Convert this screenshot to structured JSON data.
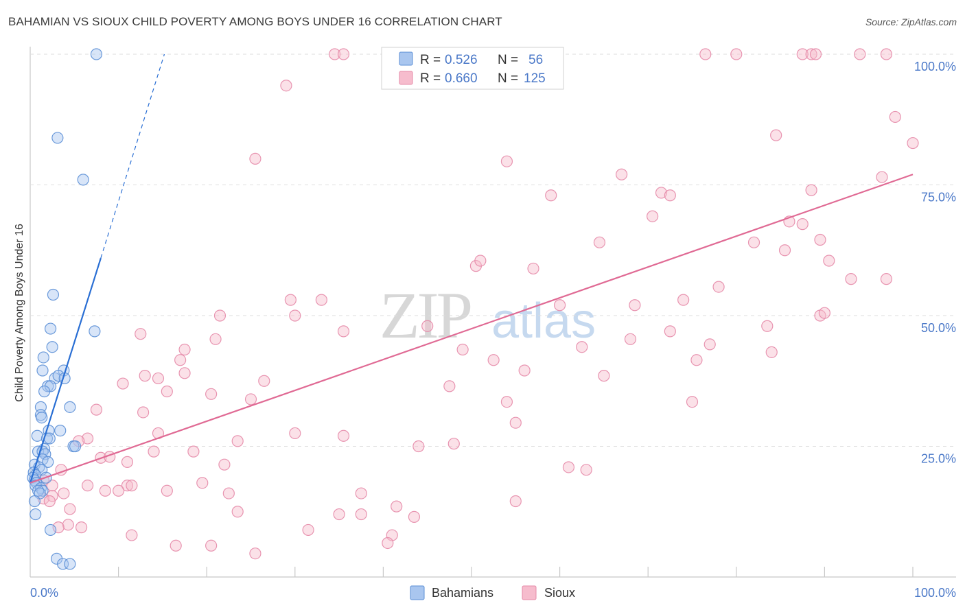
{
  "title": "BAHAMIAN VS SIOUX CHILD POVERTY AMONG BOYS UNDER 16 CORRELATION CHART",
  "source": "Source: ZipAtlas.com",
  "watermark": {
    "zip": "ZIP",
    "atlas": "atlas"
  },
  "colors": {
    "blue": "#5b8fd6",
    "blue_fill": "#a9c6ef",
    "blue_line": "#2a6fd4",
    "pink": "#e58aa8",
    "pink_fill": "#f6bccd",
    "pink_line": "#e06a94",
    "tick_label": "#4a78c8"
  },
  "legend": {
    "rows": [
      {
        "r_label": "R =",
        "r_value": "0.526",
        "n_label": "N =",
        "n_value": "56"
      },
      {
        "r_label": "R =",
        "r_value": "0.660",
        "n_label": "N =",
        "n_value": "125"
      }
    ]
  },
  "bottom_legend": [
    "Bahamians",
    "Sioux"
  ],
  "chart_data": {
    "type": "scatter",
    "title": "BAHAMIAN VS SIOUX CHILD POVERTY AMONG BOYS UNDER 16 CORRELATION CHART",
    "xlabel": "",
    "ylabel": "Child Poverty Among Boys Under 16",
    "xlim": [
      0,
      100
    ],
    "ylim": [
      0,
      100
    ],
    "x_tick_labels": [
      "0.0%",
      "100.0%"
    ],
    "y_tick_labels": [
      "25.0%",
      "50.0%",
      "75.0%",
      "100.0%"
    ],
    "y_ticks": [
      25,
      50,
      75,
      100
    ],
    "series": [
      {
        "name": "Bahamians",
        "r": 0.526,
        "n": 56,
        "trend": {
          "x0": 0.0,
          "y0": 18.0,
          "x1": 8.0,
          "y1": 61.0,
          "dash_x1": 15.2,
          "dash_y1": 100.0
        },
        "points": [
          [
            7.5,
            100
          ],
          [
            3.1,
            84
          ],
          [
            6.0,
            76
          ],
          [
            2.6,
            54
          ],
          [
            7.3,
            47
          ],
          [
            2.3,
            47.5
          ],
          [
            1.5,
            42
          ],
          [
            2.5,
            44
          ],
          [
            1.4,
            39.5
          ],
          [
            3.8,
            39.5
          ],
          [
            2.8,
            38
          ],
          [
            3.2,
            38.5
          ],
          [
            3.9,
            38
          ],
          [
            2.0,
            36.5
          ],
          [
            2.3,
            36.5
          ],
          [
            1.6,
            35.5
          ],
          [
            4.5,
            32.5
          ],
          [
            1.2,
            32.5
          ],
          [
            1.2,
            31
          ],
          [
            1.3,
            30.5
          ],
          [
            3.4,
            28
          ],
          [
            2.1,
            28
          ],
          [
            0.8,
            27
          ],
          [
            1.9,
            26.5
          ],
          [
            2.2,
            26.5
          ],
          [
            4.9,
            25
          ],
          [
            5.1,
            25
          ],
          [
            1.6,
            24.5
          ],
          [
            0.9,
            24
          ],
          [
            1.4,
            24
          ],
          [
            1.7,
            23.5
          ],
          [
            1.4,
            22.5
          ],
          [
            2.0,
            22
          ],
          [
            0.5,
            21.5
          ],
          [
            1.0,
            21
          ],
          [
            1.3,
            20.5
          ],
          [
            0.4,
            20
          ],
          [
            0.6,
            19.5
          ],
          [
            0.3,
            19
          ],
          [
            1.8,
            19
          ],
          [
            0.5,
            18.5
          ],
          [
            0.7,
            18
          ],
          [
            0.6,
            17.5
          ],
          [
            1.2,
            17
          ],
          [
            1.4,
            16.5
          ],
          [
            0.9,
            16.5
          ],
          [
            1.1,
            16
          ],
          [
            0.5,
            14.5
          ],
          [
            0.6,
            12
          ],
          [
            2.3,
            9
          ],
          [
            3.0,
            3.5
          ],
          [
            3.7,
            2.5
          ],
          [
            4.5,
            2.5
          ]
        ],
        "note": "approximate positions read from plot"
      },
      {
        "name": "Sioux",
        "r": 0.66,
        "n": 125,
        "trend": {
          "x0": 0.0,
          "y0": 18.0,
          "x1": 100.0,
          "y1": 77.0
        },
        "points": [
          [
            34.5,
            100
          ],
          [
            35.5,
            100
          ],
          [
            47.5,
            100
          ],
          [
            48.5,
            100
          ],
          [
            76.5,
            100
          ],
          [
            80.0,
            100
          ],
          [
            87.5,
            100
          ],
          [
            88.5,
            100
          ],
          [
            89.0,
            100
          ],
          [
            94.0,
            100
          ],
          [
            97.0,
            100
          ],
          [
            29.0,
            94
          ],
          [
            98.0,
            88
          ],
          [
            100.0,
            83
          ],
          [
            84.5,
            84.5
          ],
          [
            25.5,
            80
          ],
          [
            54.0,
            79.5
          ],
          [
            67.0,
            77
          ],
          [
            96.5,
            76.5
          ],
          [
            59.0,
            73
          ],
          [
            71.5,
            73.5
          ],
          [
            72.5,
            73
          ],
          [
            88.5,
            74
          ],
          [
            70.5,
            69
          ],
          [
            86.0,
            68
          ],
          [
            87.5,
            67.5
          ],
          [
            64.5,
            64
          ],
          [
            82.0,
            64
          ],
          [
            85.5,
            62.5
          ],
          [
            89.5,
            64.5
          ],
          [
            90.5,
            60.5
          ],
          [
            50.5,
            59.5
          ],
          [
            51.0,
            60.5
          ],
          [
            57.0,
            59
          ],
          [
            78.0,
            55.5
          ],
          [
            93.0,
            57
          ],
          [
            97.0,
            57
          ],
          [
            29.5,
            53
          ],
          [
            33.0,
            53
          ],
          [
            60.0,
            52
          ],
          [
            68.5,
            52
          ],
          [
            74.0,
            53
          ],
          [
            89.5,
            50
          ],
          [
            90.0,
            50.5
          ],
          [
            21.5,
            50
          ],
          [
            30.0,
            50
          ],
          [
            45.0,
            48
          ],
          [
            35.5,
            47
          ],
          [
            72.5,
            47
          ],
          [
            12.5,
            46.5
          ],
          [
            21.0,
            45.5
          ],
          [
            68.0,
            45.5
          ],
          [
            77.0,
            44.5
          ],
          [
            83.5,
            48
          ],
          [
            17.5,
            43.5
          ],
          [
            49.0,
            43.5
          ],
          [
            62.5,
            44
          ],
          [
            84.0,
            43
          ],
          [
            17.0,
            41.5
          ],
          [
            52.5,
            41.5
          ],
          [
            75.5,
            41.5
          ],
          [
            17.5,
            39
          ],
          [
            56.0,
            39.5
          ],
          [
            65.0,
            38.5
          ],
          [
            13.0,
            38.5
          ],
          [
            14.5,
            38
          ],
          [
            26.5,
            37.5
          ],
          [
            10.5,
            37
          ],
          [
            47.5,
            36.5
          ],
          [
            15.5,
            35.5
          ],
          [
            20.5,
            35
          ],
          [
            25.0,
            34
          ],
          [
            54.0,
            33.5
          ],
          [
            75.0,
            33.5
          ],
          [
            7.5,
            32
          ],
          [
            12.8,
            31.5
          ],
          [
            55.0,
            29.5
          ],
          [
            14.5,
            27.5
          ],
          [
            30.0,
            27.5
          ],
          [
            35.5,
            27
          ],
          [
            6.5,
            26.5
          ],
          [
            5.5,
            26
          ],
          [
            23.5,
            26
          ],
          [
            44.0,
            25
          ],
          [
            48.0,
            25.5
          ],
          [
            18.5,
            24
          ],
          [
            14.0,
            24
          ],
          [
            8.0,
            22.8
          ],
          [
            9.0,
            23
          ],
          [
            11.0,
            22
          ],
          [
            22.0,
            21.5
          ],
          [
            61.0,
            21
          ],
          [
            63.0,
            20.5
          ],
          [
            3.5,
            20.5
          ],
          [
            1.5,
            18.5
          ],
          [
            2.5,
            17.5
          ],
          [
            6.5,
            17.5
          ],
          [
            11.0,
            17.5
          ],
          [
            11.5,
            17.5
          ],
          [
            19.5,
            18
          ],
          [
            8.5,
            16.5
          ],
          [
            10.0,
            16.5
          ],
          [
            15.5,
            16.5
          ],
          [
            22.5,
            16
          ],
          [
            37.5,
            16
          ],
          [
            3.8,
            16
          ],
          [
            2.5,
            15.5
          ],
          [
            1.5,
            15
          ],
          [
            2.2,
            14.5
          ],
          [
            55.0,
            14.5
          ],
          [
            41.5,
            13.5
          ],
          [
            4.5,
            13
          ],
          [
            23.5,
            12.5
          ],
          [
            35.0,
            12
          ],
          [
            4.3,
            10
          ],
          [
            37.5,
            12
          ],
          [
            43.5,
            11.5
          ],
          [
            3.2,
            9.5
          ],
          [
            5.8,
            9.5
          ],
          [
            11.5,
            8
          ],
          [
            41.0,
            8
          ],
          [
            31.5,
            9
          ],
          [
            16.5,
            6
          ],
          [
            20.5,
            6
          ],
          [
            40.5,
            6.5
          ],
          [
            25.5,
            4.5
          ]
        ],
        "note": "approximate positions read from plot"
      }
    ]
  }
}
